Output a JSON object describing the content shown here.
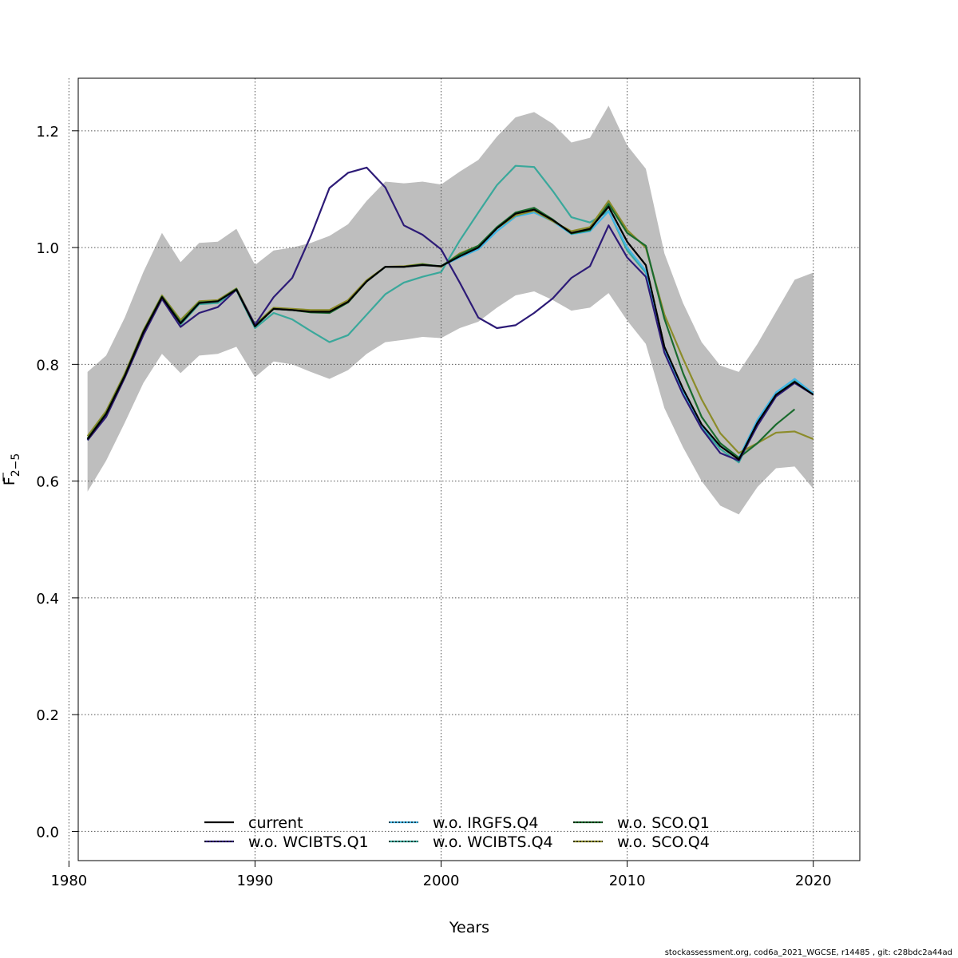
{
  "chart_data": {
    "type": "line",
    "title": "",
    "xlabel": "Years",
    "ylabel": "F",
    "ylabel_subscript": "2−5",
    "xlim": [
      1980.5,
      2022.5
    ],
    "ylim": [
      -0.05,
      1.29
    ],
    "xticks": [
      1980,
      1990,
      2000,
      2010,
      2020
    ],
    "yticks": [
      0.0,
      0.2,
      0.4,
      0.6,
      0.8,
      1.0,
      1.2
    ],
    "ytick_labels": [
      "0.0",
      "0.2",
      "0.4",
      "0.6",
      "0.8",
      "1.0",
      "1.2"
    ],
    "grid": true,
    "legend_position": "bottom",
    "band": {
      "color": "#bebebe",
      "x": [
        1981,
        1982,
        1983,
        1984,
        1985,
        1986,
        1987,
        1988,
        1989,
        1990,
        1991,
        1992,
        1993,
        1994,
        1995,
        1996,
        1997,
        1998,
        1999,
        2000,
        2001,
        2002,
        2003,
        2004,
        2005,
        2006,
        2007,
        2008,
        2009,
        2010,
        2011,
        2012,
        2013,
        2014,
        2015,
        2016,
        2017,
        2018,
        2019,
        2020
      ],
      "upper": [
        0.787,
        0.815,
        0.88,
        0.958,
        1.025,
        0.975,
        1.008,
        1.01,
        1.032,
        0.97,
        0.995,
        1.0,
        1.008,
        1.02,
        1.04,
        1.08,
        1.113,
        1.11,
        1.113,
        1.108,
        1.13,
        1.15,
        1.19,
        1.223,
        1.232,
        1.212,
        1.18,
        1.188,
        1.243,
        1.175,
        1.135,
        0.99,
        0.905,
        0.838,
        0.798,
        0.787,
        0.835,
        0.89,
        0.945,
        0.957
      ],
      "lower": [
        0.582,
        0.635,
        0.7,
        0.768,
        0.818,
        0.785,
        0.815,
        0.818,
        0.83,
        0.778,
        0.805,
        0.8,
        0.787,
        0.775,
        0.79,
        0.818,
        0.838,
        0.842,
        0.847,
        0.845,
        0.862,
        0.873,
        0.897,
        0.918,
        0.925,
        0.91,
        0.892,
        0.897,
        0.922,
        0.875,
        0.835,
        0.725,
        0.658,
        0.6,
        0.558,
        0.543,
        0.59,
        0.622,
        0.625,
        0.587
      ]
    },
    "series": [
      {
        "name": "current",
        "color": "#000000",
        "dashed": false,
        "x": [
          1981,
          1982,
          1983,
          1984,
          1985,
          1986,
          1987,
          1988,
          1989,
          1990,
          1991,
          1992,
          1993,
          1994,
          1995,
          1996,
          1997,
          1998,
          1999,
          2000,
          2001,
          2002,
          2003,
          2004,
          2005,
          2006,
          2007,
          2008,
          2009,
          2010,
          2011,
          2012,
          2013,
          2014,
          2015,
          2016,
          2017,
          2018,
          2019,
          2020
        ],
        "values": [
          0.672,
          0.715,
          0.78,
          0.855,
          0.915,
          0.87,
          0.905,
          0.908,
          0.928,
          0.865,
          0.895,
          0.893,
          0.89,
          0.89,
          0.907,
          0.942,
          0.967,
          0.967,
          0.97,
          0.968,
          0.985,
          1.0,
          1.033,
          1.058,
          1.065,
          1.047,
          1.025,
          1.032,
          1.07,
          1.01,
          0.97,
          0.83,
          0.758,
          0.697,
          0.66,
          0.637,
          0.7,
          0.748,
          0.77,
          0.748
        ]
      },
      {
        "name": "w.o. WCIBTS.Q1",
        "color": "#2d1b77",
        "dashed": false,
        "x": [
          1981,
          1982,
          1983,
          1984,
          1985,
          1986,
          1987,
          1988,
          1989,
          1990,
          1991,
          1992,
          1993,
          1994,
          1995,
          1996,
          1997,
          1998,
          1999,
          2000,
          2001,
          2002,
          2003,
          2004,
          2005,
          2006,
          2007,
          2008,
          2009,
          2010,
          2011,
          2012,
          2013,
          2014,
          2015,
          2016,
          2017,
          2018,
          2019,
          2020
        ],
        "values": [
          0.67,
          0.71,
          0.777,
          0.85,
          0.912,
          0.864,
          0.888,
          0.898,
          0.928,
          0.868,
          0.915,
          0.948,
          1.02,
          1.102,
          1.128,
          1.137,
          1.103,
          1.038,
          1.022,
          0.997,
          0.94,
          0.88,
          0.862,
          0.867,
          0.888,
          0.913,
          0.948,
          0.968,
          1.038,
          0.983,
          0.95,
          0.82,
          0.748,
          0.69,
          0.648,
          0.635,
          0.695,
          0.745,
          0.768,
          0.748
        ]
      },
      {
        "name": "w.o. IRGFS.Q4",
        "color": "#41b6e6",
        "dashed": false,
        "x": [
          1981,
          1982,
          1983,
          1984,
          1985,
          1986,
          1987,
          1988,
          1989,
          1990,
          1991,
          1992,
          1993,
          1994,
          1995,
          1996,
          1997,
          1998,
          1999,
          2000,
          2001,
          2002,
          2003,
          2004,
          2005,
          2006,
          2007,
          2008,
          2009,
          2010,
          2011,
          2012,
          2013,
          2014,
          2015,
          2016,
          2017,
          2018,
          2019,
          2020
        ],
        "values": [
          0.672,
          0.715,
          0.78,
          0.855,
          0.915,
          0.87,
          0.905,
          0.908,
          0.928,
          0.865,
          0.895,
          0.893,
          0.89,
          0.89,
          0.907,
          0.942,
          0.967,
          0.967,
          0.97,
          0.968,
          0.983,
          0.997,
          1.028,
          1.053,
          1.06,
          1.045,
          1.023,
          1.028,
          1.062,
          1.0,
          0.96,
          0.826,
          0.755,
          0.695,
          0.66,
          0.64,
          0.705,
          0.752,
          0.775,
          0.75
        ]
      },
      {
        "name": "w.o. WCIBTS.Q4",
        "color": "#3aa89b",
        "dashed": false,
        "x": [
          1981,
          1982,
          1983,
          1984,
          1985,
          1986,
          1987,
          1988,
          1989,
          1990,
          1991,
          1992,
          1993,
          1994,
          1995,
          1996,
          1997,
          1998,
          1999,
          2000,
          2001,
          2002,
          2003,
          2004,
          2005,
          2006,
          2007,
          2008,
          2009,
          2010,
          2011,
          2012,
          2013,
          2014,
          2015,
          2016,
          2017,
          2018,
          2019,
          2020
        ],
        "values": [
          0.67,
          0.713,
          0.778,
          0.853,
          0.915,
          0.868,
          0.903,
          0.905,
          0.927,
          0.862,
          0.888,
          0.877,
          0.857,
          0.838,
          0.85,
          0.885,
          0.92,
          0.94,
          0.95,
          0.958,
          1.012,
          1.06,
          1.107,
          1.14,
          1.138,
          1.097,
          1.052,
          1.043,
          1.063,
          0.995,
          0.957,
          0.825,
          0.752,
          0.692,
          0.655,
          0.632,
          0.698,
          0.748,
          0.772,
          0.75
        ]
      },
      {
        "name": "w.o. SCO.Q1",
        "color": "#1a6b2e",
        "dashed": false,
        "x": [
          1981,
          1982,
          1983,
          1984,
          1985,
          1986,
          1987,
          1988,
          1989,
          1990,
          1991,
          1992,
          1993,
          1994,
          1995,
          1996,
          1997,
          1998,
          1999,
          2000,
          2001,
          2002,
          2003,
          2004,
          2005,
          2006,
          2007,
          2008,
          2009,
          2010,
          2011,
          2012,
          2013,
          2014,
          2015,
          2016,
          2017,
          2018,
          2019
        ],
        "values": [
          0.673,
          0.716,
          0.781,
          0.856,
          0.916,
          0.872,
          0.906,
          0.908,
          0.929,
          0.866,
          0.895,
          0.893,
          0.889,
          0.888,
          0.906,
          0.942,
          0.967,
          0.967,
          0.971,
          0.968,
          0.988,
          1.003,
          1.035,
          1.06,
          1.068,
          1.048,
          1.024,
          1.03,
          1.075,
          1.025,
          1.003,
          0.878,
          0.785,
          0.71,
          0.665,
          0.64,
          0.665,
          0.697,
          0.723
        ]
      },
      {
        "name": "w.o. SCO.Q4",
        "color": "#8c8c2a",
        "dashed": false,
        "x": [
          1981,
          1982,
          1983,
          1984,
          1985,
          1986,
          1987,
          1988,
          1989,
          1990,
          1991,
          1992,
          1993,
          1994,
          1995,
          1996,
          1997,
          1998,
          1999,
          2000,
          2001,
          2002,
          2003,
          2004,
          2005,
          2006,
          2007,
          2008,
          2009,
          2010,
          2011,
          2012,
          2013,
          2014,
          2015,
          2016,
          2017,
          2018,
          2019,
          2020
        ],
        "values": [
          0.677,
          0.72,
          0.784,
          0.858,
          0.918,
          0.876,
          0.908,
          0.91,
          0.93,
          0.868,
          0.897,
          0.895,
          0.893,
          0.893,
          0.91,
          0.944,
          0.967,
          0.968,
          0.972,
          0.967,
          0.99,
          1.003,
          1.033,
          1.055,
          1.063,
          1.045,
          1.028,
          1.035,
          1.08,
          1.03,
          1.0,
          0.885,
          0.81,
          0.74,
          0.682,
          0.648,
          0.665,
          0.683,
          0.685,
          0.672
        ]
      }
    ],
    "legend": [
      {
        "name": "current",
        "color": "#000000",
        "dotted": false
      },
      {
        "name": "w.o. WCIBTS.Q1",
        "color": "#2d1b77",
        "dotted": true
      },
      {
        "name": "w.o. IRGFS.Q4",
        "color": "#41b6e6",
        "dotted": true
      },
      {
        "name": "w.o. WCIBTS.Q4",
        "color": "#3aa89b",
        "dotted": true
      },
      {
        "name": "w.o. SCO.Q1",
        "color": "#1a6b2e",
        "dotted": true
      },
      {
        "name": "w.o. SCO.Q4",
        "color": "#8c8c2a",
        "dotted": true
      }
    ],
    "current_dashed_segment": {
      "x": [
        2008,
        2009,
        2010,
        2011,
        2012
      ],
      "values": [
        1.032,
        1.07,
        1.01,
        0.97,
        0.83
      ]
    }
  },
  "footer": "stockassessment.org, cod6a_2021_WGCSE, r14485 , git: c28bdc2a44ad"
}
